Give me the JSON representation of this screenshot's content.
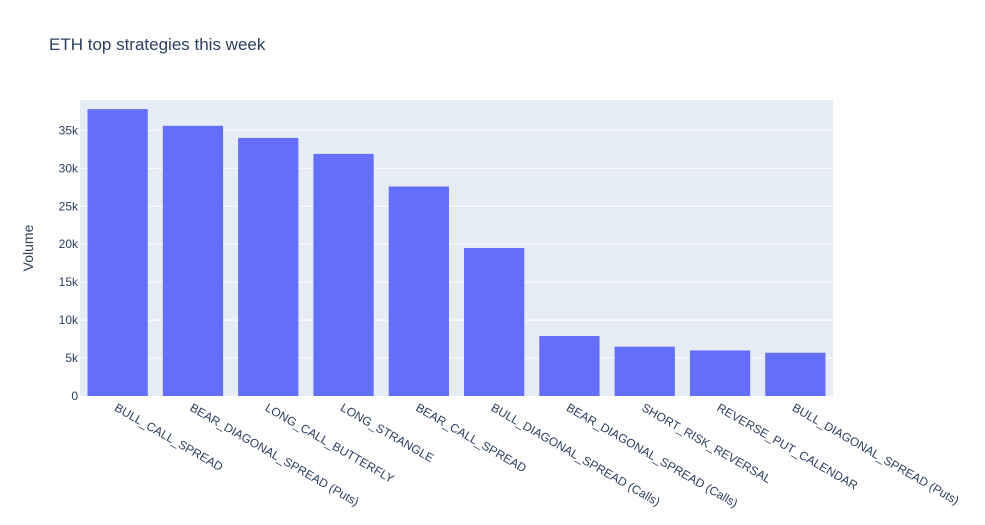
{
  "chart_data": {
    "type": "bar",
    "title": "ETH top strategies this week",
    "xlabel": "",
    "ylabel": "Volume",
    "categories": [
      "BULL_CALL_SPREAD",
      "BEAR_DIAGONAL_SPREAD (Puts)",
      "LONG_CALL_BUTTERFLY",
      "LONG_STRANGLE",
      "BEAR_CALL_SPREAD",
      "BULL_DIAGONAL_SPREAD (Calls)",
      "BEAR_DIAGONAL_SPREAD (Calls)",
      "SHORT_RISK_REVERSAL",
      "REVERSE_PUT_CALENDAR",
      "BULL_DIAGONAL_SPREAD (Puts)"
    ],
    "values": [
      37800,
      35600,
      34000,
      31900,
      27600,
      19500,
      7900,
      6500,
      6000,
      5700
    ],
    "ylim": [
      0,
      39000
    ],
    "yticks": [
      0,
      5000,
      10000,
      15000,
      20000,
      25000,
      30000,
      35000
    ],
    "ytick_labels": [
      "0",
      "5k",
      "10k",
      "15k",
      "20k",
      "25k",
      "30k",
      "35k"
    ],
    "grid": true,
    "colors": {
      "bar": "#636efa",
      "plot_bg": "#e5ecf6",
      "grid": "#ffffff",
      "text": "#2a3f5f"
    }
  }
}
